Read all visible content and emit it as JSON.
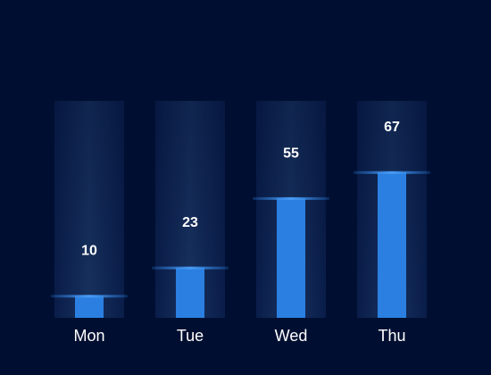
{
  "chart_data": {
    "type": "bar",
    "categories": [
      "Mon",
      "Tue",
      "Wed",
      "Thu"
    ],
    "values": [
      10,
      23,
      55,
      67
    ],
    "ylim": [
      0,
      100
    ],
    "grid": false,
    "legend": "none"
  },
  "colors": {
    "background": "#000f31",
    "bar": "#2a7fe0",
    "bar_cap": "#3a8ff0",
    "track_edge": "#071a47",
    "track_center": "#17305e",
    "text": "#ffffff"
  }
}
